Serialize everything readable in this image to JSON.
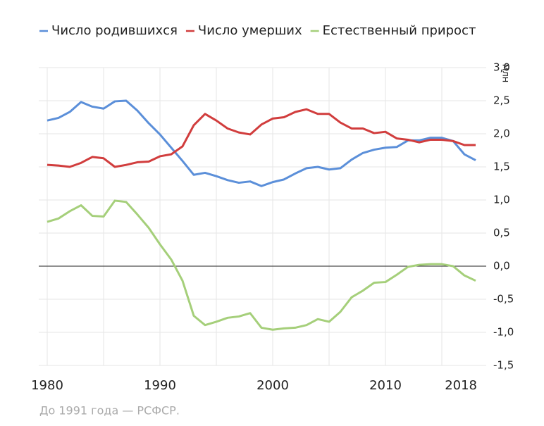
{
  "chart_data": {
    "type": "line",
    "x": [
      1980,
      1981,
      1982,
      1983,
      1984,
      1985,
      1986,
      1987,
      1988,
      1989,
      1990,
      1991,
      1992,
      1993,
      1994,
      1995,
      1996,
      1997,
      1998,
      1999,
      2000,
      2001,
      2002,
      2003,
      2004,
      2005,
      2006,
      2007,
      2008,
      2009,
      2010,
      2011,
      2012,
      2013,
      2014,
      2015,
      2016,
      2017,
      2018
    ],
    "series": [
      {
        "name": "Число родившихся",
        "color": "#5b8fd9",
        "values": [
          2.2,
          2.24,
          2.33,
          2.48,
          2.41,
          2.38,
          2.49,
          2.5,
          2.35,
          2.16,
          1.99,
          1.79,
          1.59,
          1.38,
          1.41,
          1.36,
          1.3,
          1.26,
          1.28,
          1.21,
          1.27,
          1.31,
          1.4,
          1.48,
          1.5,
          1.46,
          1.48,
          1.61,
          1.71,
          1.76,
          1.79,
          1.8,
          1.9,
          1.9,
          1.94,
          1.94,
          1.89,
          1.69,
          1.6
        ]
      },
      {
        "name": "Число умерших",
        "color": "#d13d3d",
        "values": [
          1.53,
          1.52,
          1.5,
          1.56,
          1.65,
          1.63,
          1.5,
          1.53,
          1.57,
          1.58,
          1.66,
          1.69,
          1.81,
          2.13,
          2.3,
          2.2,
          2.08,
          2.02,
          1.99,
          2.14,
          2.23,
          2.25,
          2.33,
          2.37,
          2.3,
          2.3,
          2.17,
          2.08,
          2.08,
          2.01,
          2.03,
          1.93,
          1.91,
          1.87,
          1.91,
          1.91,
          1.89,
          1.83,
          1.83
        ]
      },
      {
        "name": "Естественный прирост",
        "color": "#a5cf7a",
        "values": [
          0.67,
          0.72,
          0.83,
          0.92,
          0.76,
          0.75,
          0.99,
          0.97,
          0.78,
          0.58,
          0.33,
          0.1,
          -0.22,
          -0.75,
          -0.89,
          -0.84,
          -0.78,
          -0.76,
          -0.71,
          -0.93,
          -0.96,
          -0.94,
          -0.93,
          -0.89,
          -0.8,
          -0.84,
          -0.69,
          -0.47,
          -0.37,
          -0.25,
          -0.24,
          -0.13,
          -0.01,
          0.02,
          0.03,
          0.03,
          0.0,
          -0.14,
          -0.22
        ]
      }
    ],
    "xlim": [
      1980,
      2018
    ],
    "xticks": [
      1980,
      1990,
      2000,
      2010,
      2018
    ],
    "xgrid": [
      1980,
      1985,
      1990,
      1995,
      2000,
      2005,
      2010,
      2015
    ],
    "ylim": [
      -1.5,
      3
    ],
    "yticks": [
      {
        "value": 3,
        "label": "3,0"
      },
      {
        "value": 2.5,
        "label": "2,5"
      },
      {
        "value": 2,
        "label": "2,0"
      },
      {
        "value": 1.5,
        "label": "1,5"
      },
      {
        "value": 1,
        "label": "1,0"
      },
      {
        "value": 0.5,
        "label": "0,5"
      },
      {
        "value": 0,
        "label": "0,0"
      },
      {
        "value": -0.5,
        "label": "-0,5"
      },
      {
        "value": -1,
        "label": "-1,0"
      },
      {
        "value": -1.5,
        "label": "-1,5"
      }
    ],
    "y_label": "млн",
    "note": "До 1991 года — РСФСР.",
    "grid": true
  }
}
